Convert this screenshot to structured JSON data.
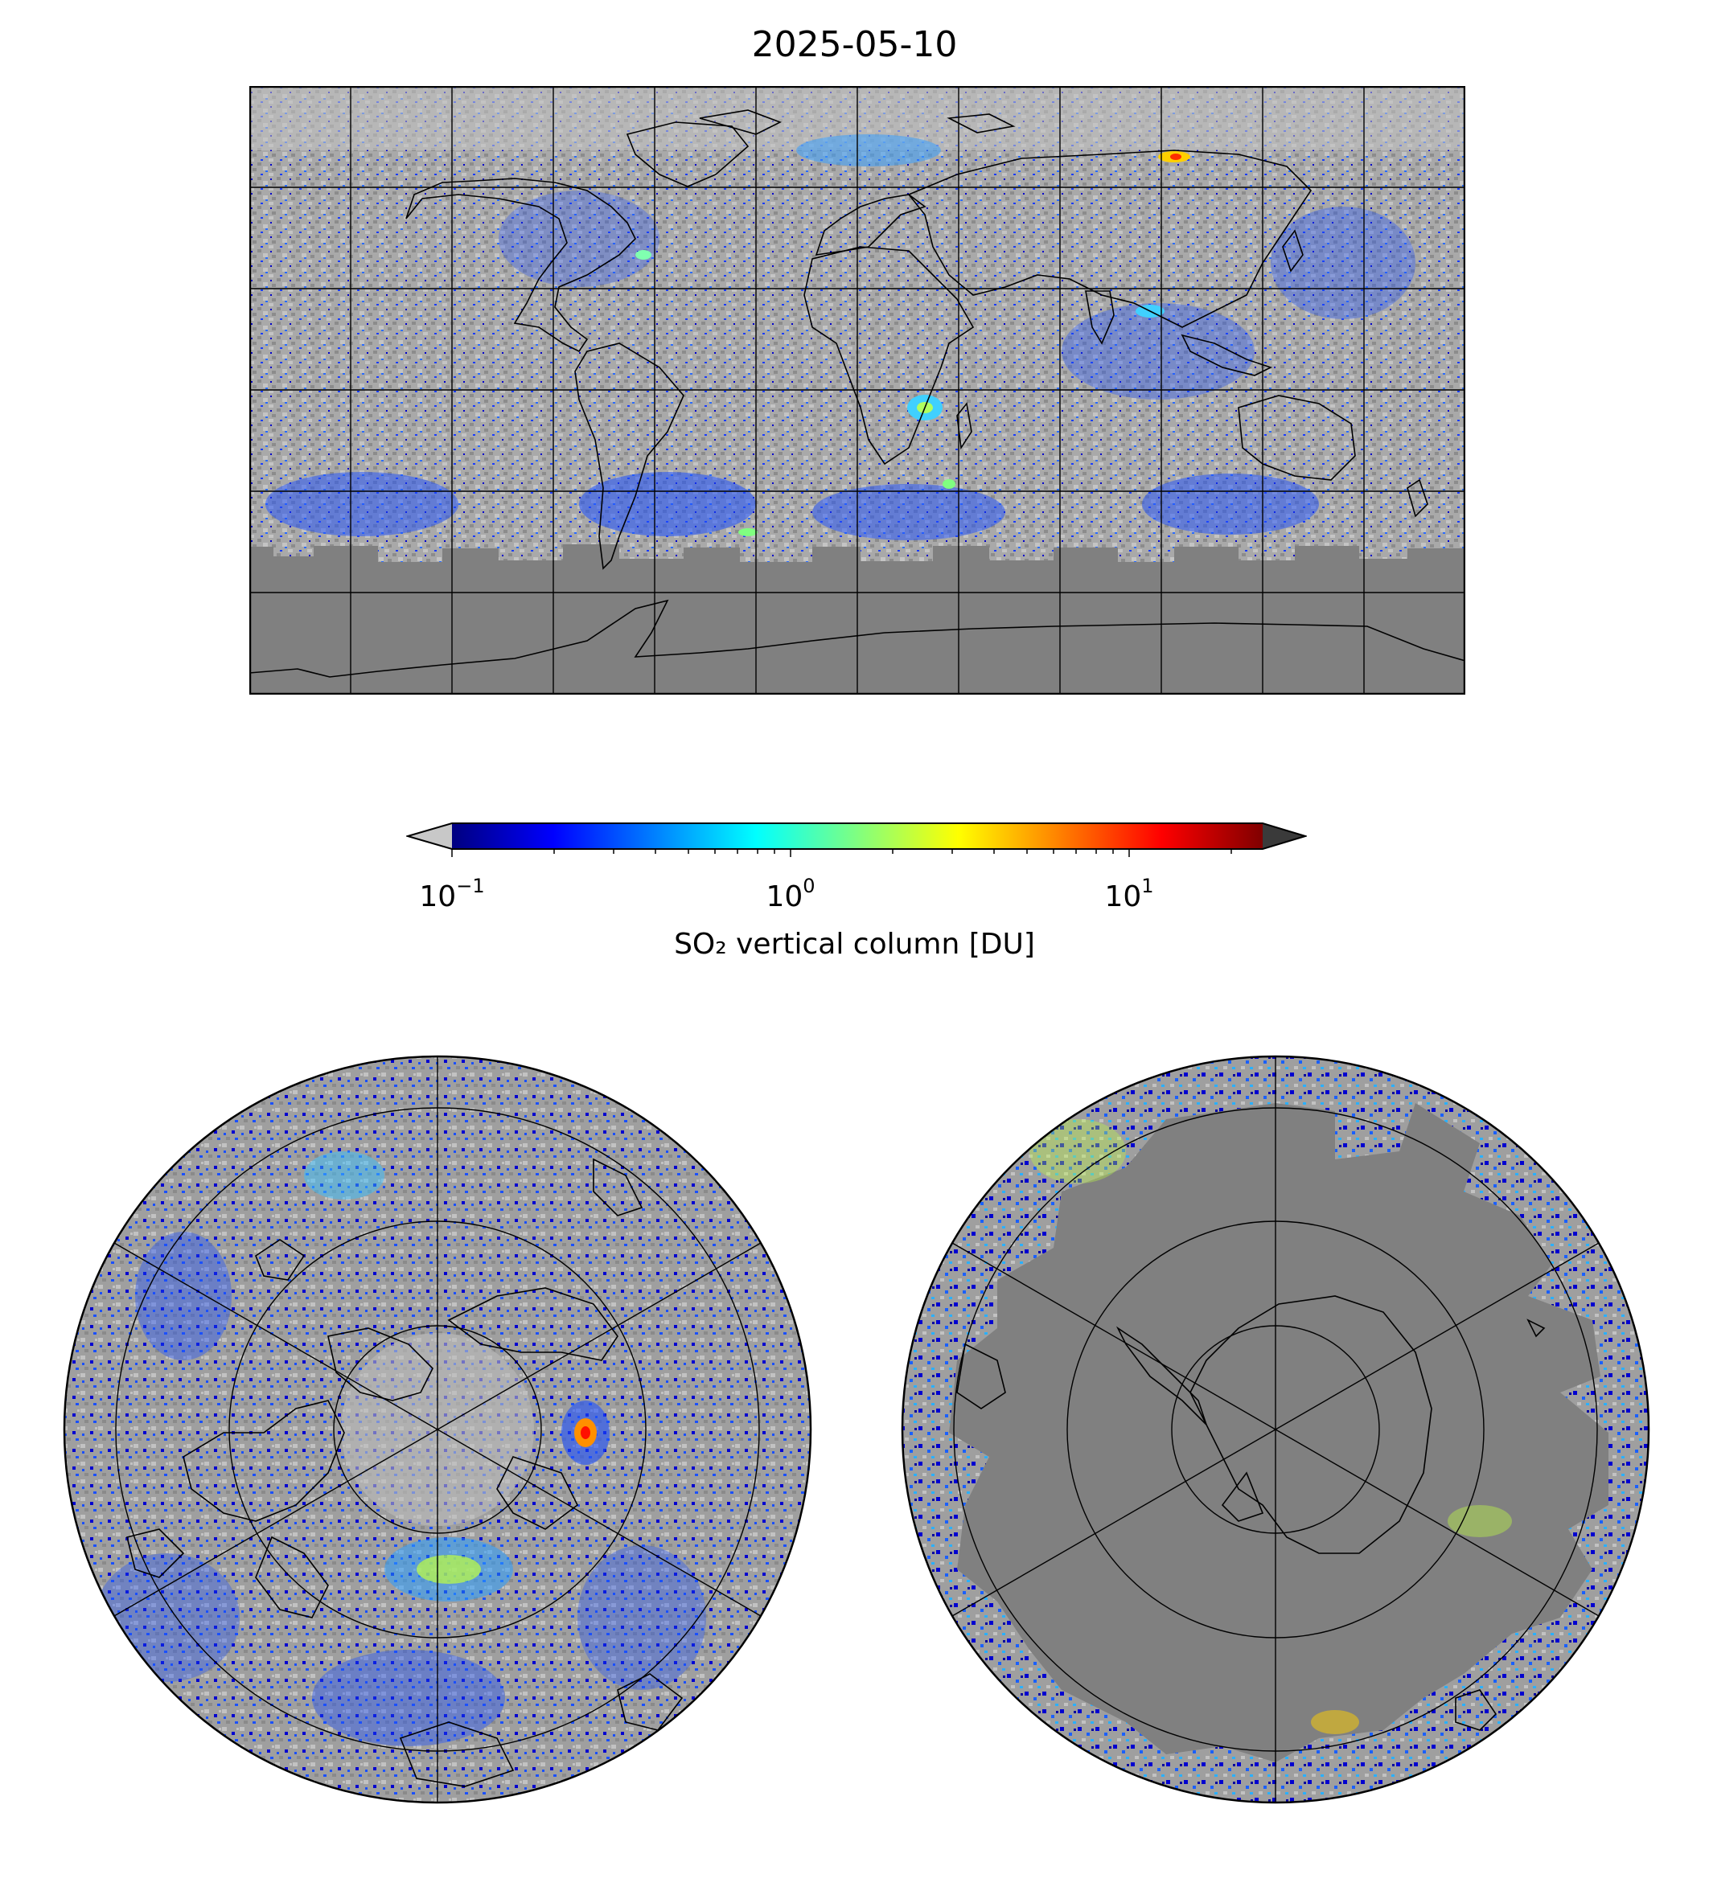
{
  "title": "2025-05-10",
  "colorbar": {
    "label": "SO₂ vertical column [DU]",
    "ticks": [
      {
        "base": "10",
        "exponent": "−1"
      },
      {
        "base": "10",
        "exponent": "0"
      },
      {
        "base": "10",
        "exponent": "1"
      }
    ],
    "scale": "log",
    "range": [
      0.1,
      25
    ],
    "extend": "both",
    "under_color": "#c8c8c8",
    "over_color": "#3a3a3a",
    "colormap": "jet",
    "colors": [
      "#000080",
      "#0000ff",
      "#0080ff",
      "#00ffff",
      "#80ff80",
      "#ffff00",
      "#ff8000",
      "#ff0000",
      "#800000"
    ]
  },
  "maps": {
    "global": {
      "projection": "plate-carree",
      "no_data_color": "#808080",
      "low_value_color": "#bdbdbd"
    },
    "north_polar": {
      "projection": "north-polar-stereographic"
    },
    "south_polar": {
      "projection": "south-polar-stereographic"
    }
  }
}
